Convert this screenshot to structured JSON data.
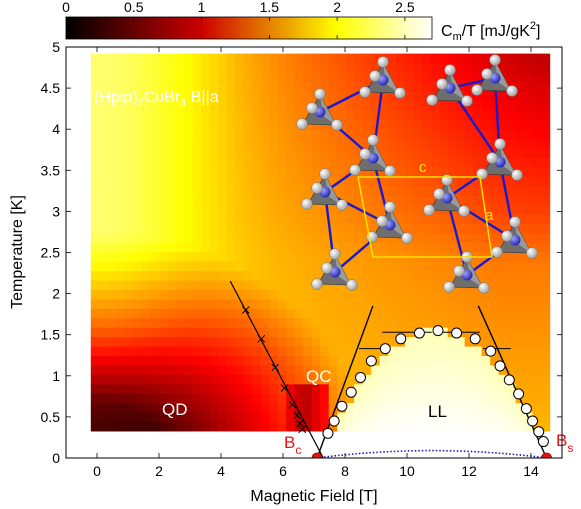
{
  "chart_data": {
    "type": "heatmap",
    "title": "(Hpip)2CuBr4 B||a",
    "title_main": "(Hpip)",
    "title_sub1": "2",
    "title_mid": "CuBr",
    "title_sub2": "4",
    "title_tail": " B||a",
    "xlabel": "Magnetic Field [T]",
    "ylabel": "Temperature [K]",
    "xlim": [
      -1,
      15
    ],
    "ylim": [
      0,
      5
    ],
    "xticks": [
      0,
      2,
      4,
      6,
      8,
      10,
      12,
      14
    ],
    "yticks": [
      0,
      0.5,
      1,
      1.5,
      2,
      2.5,
      3,
      3.5,
      4,
      4.5,
      5
    ],
    "colorbar": {
      "label": "Cm/T [mJ/gK2]",
      "label_main": "C",
      "label_sub": "m",
      "label_mid": "/T [mJ/gK",
      "label_sup": "2",
      "label_tail": "]",
      "range": [
        0,
        2.7
      ],
      "ticks": [
        0,
        0.5,
        1,
        1.5,
        2,
        2.5
      ],
      "colormap": "hot"
    },
    "heatmap_extent": {
      "x": [
        -0.2,
        14.6
      ],
      "y": [
        0.33,
        4.92
      ]
    },
    "regions": [
      "QD",
      "QC",
      "LL"
    ],
    "critical_fields": [
      {
        "label": "B",
        "sub": "c",
        "field": 7.1
      },
      {
        "label": "B",
        "sub": "s",
        "field": 14.5
      }
    ],
    "crossover_line": {
      "x": [
        4.3,
        7.3
      ],
      "y": [
        2.15,
        0
      ]
    },
    "crossover_marks": {
      "B": [
        4.8,
        5.3,
        5.75,
        6.05,
        6.3,
        6.45,
        6.55,
        6.62
      ],
      "T": [
        1.8,
        1.45,
        1.1,
        0.85,
        0.65,
        0.52,
        0.42,
        0.35
      ]
    },
    "qc_boundary_lines": [
      {
        "x": [
          7.1,
          8.9
        ],
        "y": [
          0,
          1.85
        ]
      },
      {
        "x": [
          14.5,
          12.3
        ],
        "y": [
          0,
          1.85
        ]
      }
    ],
    "ordering_dome": {
      "B": [
        7.45,
        7.65,
        7.9,
        8.2,
        8.5,
        8.85,
        9.3,
        9.8,
        10.4,
        11.0,
        11.6,
        12.2,
        12.7,
        13.0,
        13.3,
        13.6,
        13.85,
        14.05,
        14.25,
        14.4
      ],
      "T": [
        0.3,
        0.45,
        0.63,
        0.8,
        0.98,
        1.18,
        1.33,
        1.45,
        1.52,
        1.55,
        1.52,
        1.45,
        1.3,
        1.12,
        0.95,
        0.78,
        0.6,
        0.45,
        0.32,
        0.2
      ]
    },
    "ordering_bars": [
      {
        "B": 10.0,
        "T": 1.53,
        "half_width": 0.8
      },
      {
        "B": 11.6,
        "T": 1.53,
        "half_width": 0.75
      },
      {
        "B": 8.9,
        "T": 1.33,
        "half_width": 0.45
      },
      {
        "B": 12.9,
        "T": 1.33,
        "half_width": 0.45
      }
    ],
    "low_T_dome": {
      "B": [
        7.1,
        10.8,
        14.5
      ],
      "T": [
        0,
        0.09,
        0
      ]
    },
    "inset": {
      "axis_labels": [
        "c",
        "a"
      ],
      "description": "crystal structure of (Hpip)2CuBr4 with CuBr4 tetrahedra and ladder bonds; yellow unit cell"
    }
  }
}
